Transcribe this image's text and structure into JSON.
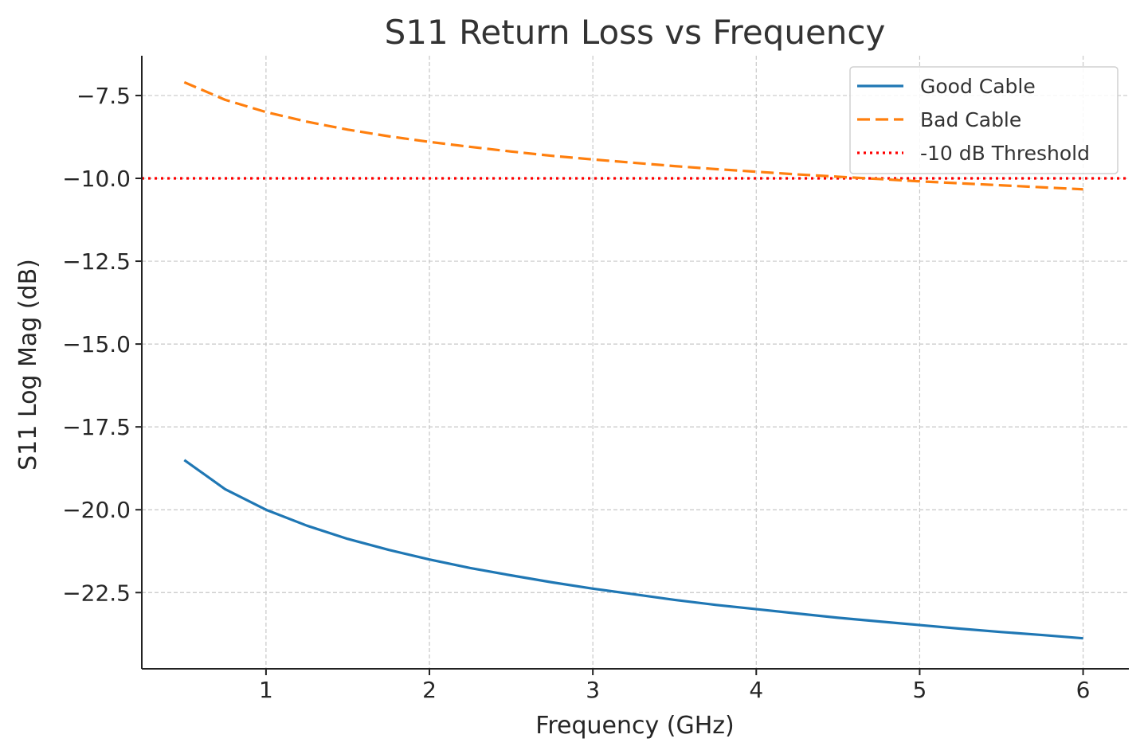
{
  "chart_data": {
    "type": "line",
    "title": "S11 Return Loss vs Frequency",
    "xlabel": "Frequency (GHz)",
    "ylabel": "S11 Log Mag (dB)",
    "xlim": [
      0.24,
      6.28
    ],
    "ylim": [
      -24.8,
      -6.3
    ],
    "xticks": [
      1,
      2,
      3,
      4,
      5,
      6
    ],
    "xtick_labels": [
      "1",
      "2",
      "3",
      "4",
      "5",
      "6"
    ],
    "yticks": [
      -7.5,
      -10.0,
      -12.5,
      -15.0,
      -17.5,
      -20.0,
      -22.5
    ],
    "ytick_labels": [
      "−7.5",
      "−10.0",
      "−12.5",
      "−15.0",
      "−17.5",
      "−20.0",
      "−22.5"
    ],
    "grid": true,
    "legend_position": "top-right",
    "x": [
      0.5,
      0.75,
      1.0,
      1.25,
      1.5,
      1.75,
      2.0,
      2.25,
      2.5,
      2.75,
      3.0,
      3.25,
      3.5,
      3.75,
      4.0,
      4.25,
      4.5,
      4.75,
      5.0,
      5.25,
      5.5,
      5.75,
      6.0
    ],
    "series": [
      {
        "name": "Good Cable",
        "color": "#1f77b4",
        "style": "solid",
        "values": [
          -18.5,
          -19.38,
          -20.0,
          -20.48,
          -20.88,
          -21.21,
          -21.5,
          -21.76,
          -21.98,
          -22.19,
          -22.38,
          -22.55,
          -22.72,
          -22.87,
          -23.0,
          -23.13,
          -23.26,
          -23.37,
          -23.48,
          -23.59,
          -23.69,
          -23.78,
          -23.88
        ]
      },
      {
        "name": "Bad Cable",
        "color": "#ff7f0e",
        "style": "dashed",
        "values": [
          -7.1,
          -7.63,
          -8.0,
          -8.29,
          -8.53,
          -8.73,
          -8.9,
          -9.05,
          -9.19,
          -9.32,
          -9.43,
          -9.53,
          -9.63,
          -9.72,
          -9.8,
          -9.88,
          -9.95,
          -10.02,
          -10.09,
          -10.15,
          -10.21,
          -10.27,
          -10.33
        ]
      }
    ],
    "reference_lines": [
      {
        "name": "-10 dB Threshold",
        "y": -10,
        "color": "#ff0000",
        "style": "dotted"
      }
    ]
  }
}
